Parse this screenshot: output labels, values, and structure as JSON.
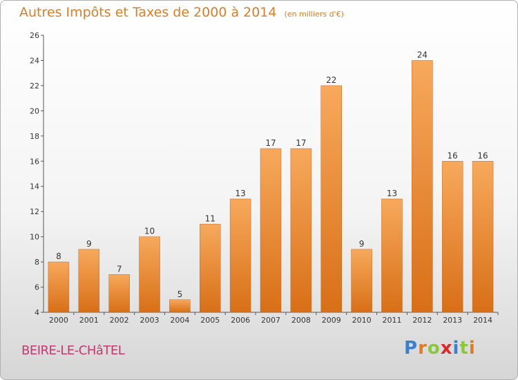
{
  "header": {
    "title": "Autres Impôts et Taxes de 2000 à 2014",
    "subtitle": "(en milliers d'€)"
  },
  "footer": {
    "city": "BEIRE-LE-CHâTEL",
    "logo": {
      "letters": [
        "P",
        "r",
        "o",
        "x",
        "i",
        "t",
        "i"
      ],
      "colors": [
        "#3a7fd0",
        "#e07b1f",
        "#8cc63f",
        "#e0262b",
        "#3a7fd0",
        "#8cc63f",
        "#e07b1f"
      ]
    }
  },
  "chart_data": {
    "type": "bar",
    "title": "Autres Impôts et Taxes de 2000 à 2014",
    "subtitle": "(en milliers d'€)",
    "categories": [
      "2000",
      "2001",
      "2002",
      "2003",
      "2004",
      "2005",
      "2006",
      "2007",
      "2008",
      "2009",
      "2010",
      "2011",
      "2012",
      "2013",
      "2014"
    ],
    "values": [
      8,
      9,
      7,
      10,
      5,
      11,
      13,
      17,
      17,
      22,
      9,
      13,
      24,
      16,
      16
    ],
    "ylim": [
      4,
      26
    ],
    "yticks": [
      4,
      6,
      8,
      10,
      12,
      14,
      16,
      18,
      20,
      22,
      24,
      26
    ],
    "grid": false,
    "bar_color": "#f08a2e",
    "bar_color_light": "#f7a95c",
    "bar_color_dark": "#d86f17"
  }
}
